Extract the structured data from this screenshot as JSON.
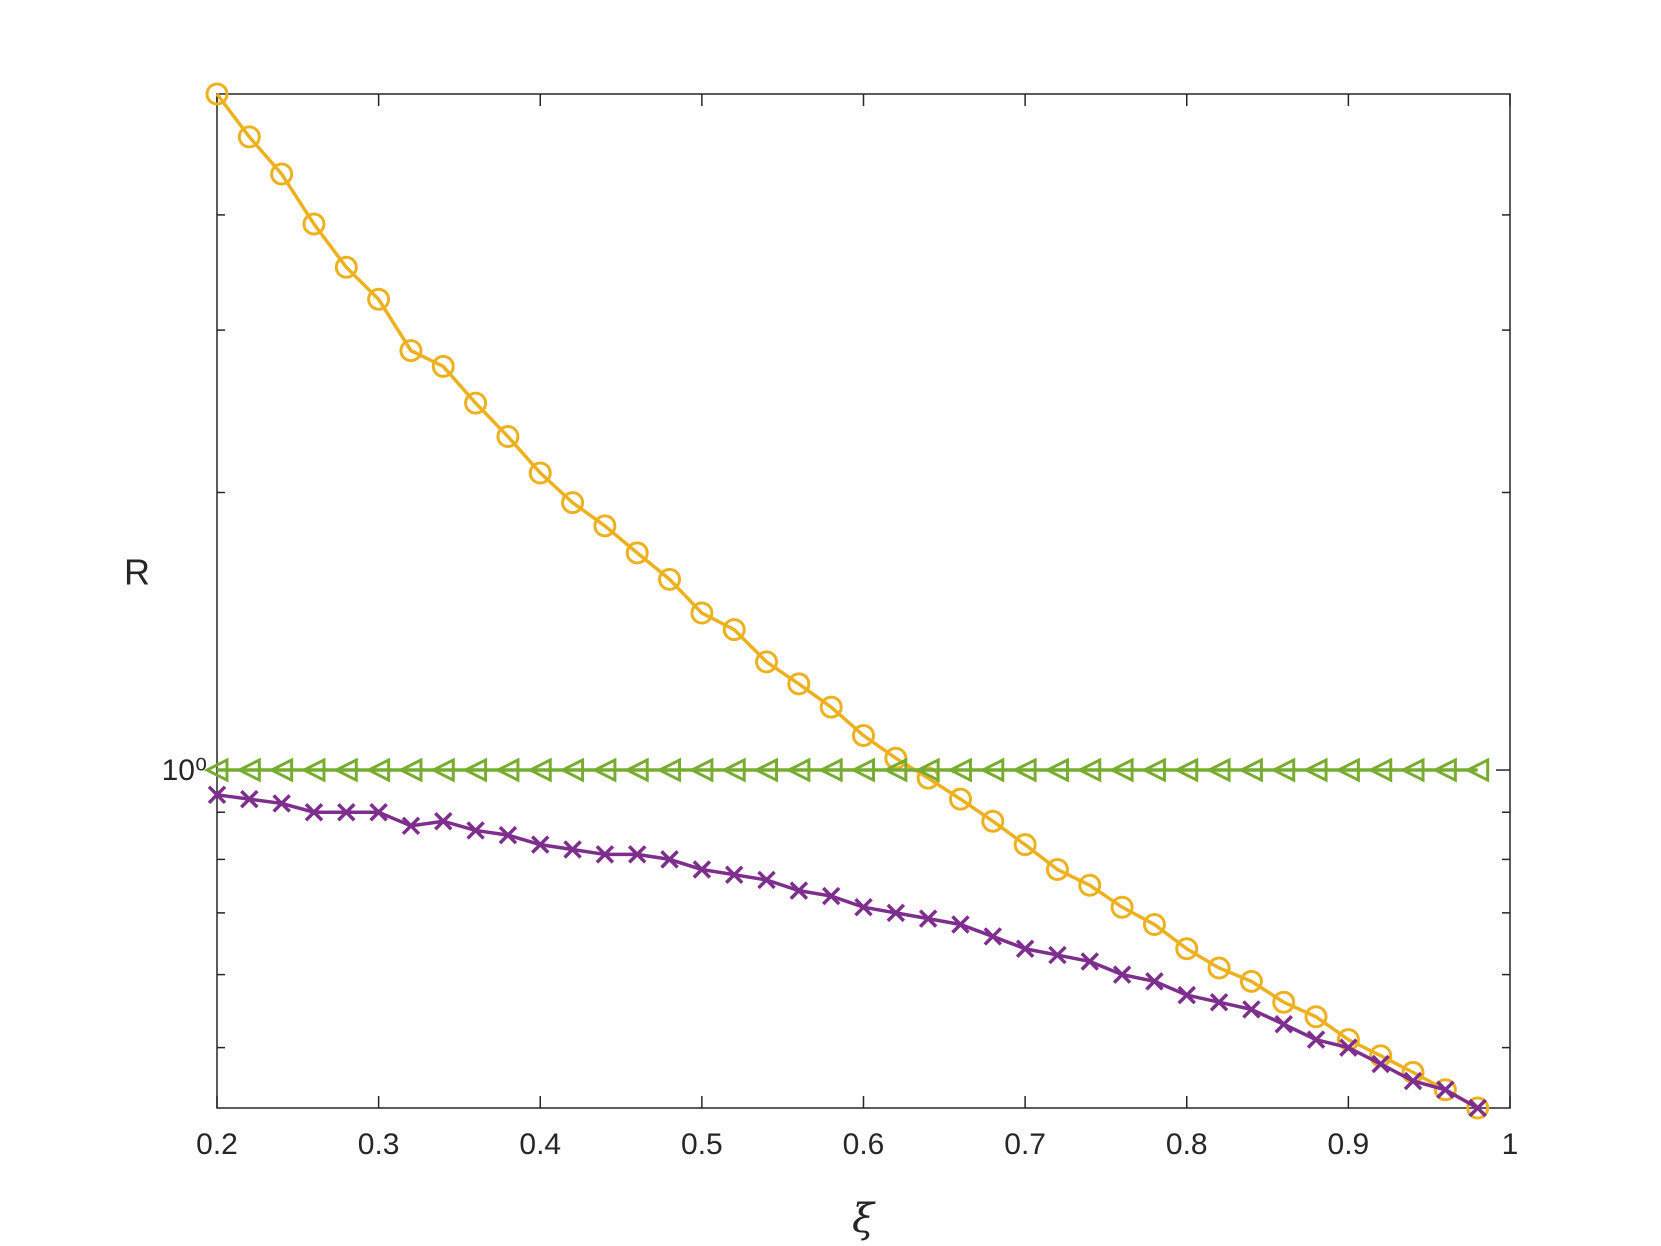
{
  "chart_data": {
    "type": "line",
    "xlabel": "ξ",
    "ylabel": "R",
    "yscale": "log",
    "x": [
      0.2,
      0.22,
      0.24,
      0.26,
      0.28,
      0.3,
      0.32,
      0.34,
      0.36,
      0.38,
      0.4,
      0.42,
      0.44,
      0.46,
      0.48,
      0.5,
      0.52,
      0.54,
      0.56,
      0.58,
      0.6,
      0.62,
      0.64,
      0.66,
      0.68,
      0.7,
      0.72,
      0.74,
      0.76,
      0.78,
      0.8,
      0.82,
      0.84,
      0.86,
      0.88,
      0.9,
      0.92,
      0.94,
      0.96,
      0.98
    ],
    "series": [
      {
        "color": "#EDB120",
        "marker": "circle",
        "values": [
          5.41,
          4.86,
          4.43,
          3.91,
          3.51,
          3.24,
          2.85,
          2.74,
          2.5,
          2.3,
          2.1,
          1.95,
          1.84,
          1.72,
          1.61,
          1.48,
          1.42,
          1.31,
          1.24,
          1.17,
          1.09,
          1.03,
          0.98,
          0.93,
          0.88,
          0.83,
          0.78,
          0.75,
          0.71,
          0.68,
          0.64,
          0.61,
          0.59,
          0.56,
          0.54,
          0.51,
          0.49,
          0.47,
          0.45,
          0.43
        ]
      },
      {
        "color": "#77AC30",
        "marker": "triangle-left",
        "values": [
          1,
          1,
          1,
          1,
          1,
          1,
          1,
          1,
          1,
          1,
          1,
          1,
          1,
          1,
          1,
          1,
          1,
          1,
          1,
          1,
          1,
          1,
          1,
          1,
          1,
          1,
          1,
          1,
          1,
          1,
          1,
          1,
          1,
          1,
          1,
          1,
          1,
          1,
          1,
          1
        ]
      },
      {
        "color": "#7E2F8E",
        "marker": "x",
        "values": [
          0.94,
          0.93,
          0.92,
          0.9,
          0.9,
          0.9,
          0.87,
          0.88,
          0.86,
          0.85,
          0.83,
          0.82,
          0.81,
          0.81,
          0.8,
          0.78,
          0.77,
          0.76,
          0.74,
          0.73,
          0.71,
          0.7,
          0.69,
          0.68,
          0.66,
          0.64,
          0.63,
          0.62,
          0.6,
          0.59,
          0.57,
          0.56,
          0.55,
          0.53,
          0.51,
          0.5,
          0.48,
          0.46,
          0.45,
          0.43
        ]
      }
    ],
    "xlim": [
      0.2,
      1
    ],
    "xticks": [
      0.2,
      0.3,
      0.4,
      0.5,
      0.6,
      0.7,
      0.8,
      0.9,
      1
    ],
    "ylim": [
      0.43,
      5.41
    ],
    "yticks": [
      {
        "value": 1,
        "label": "10⁰"
      }
    ],
    "minor_yticks": [
      0.5,
      0.6,
      0.7,
      0.8,
      0.9,
      2,
      3,
      4
    ]
  }
}
